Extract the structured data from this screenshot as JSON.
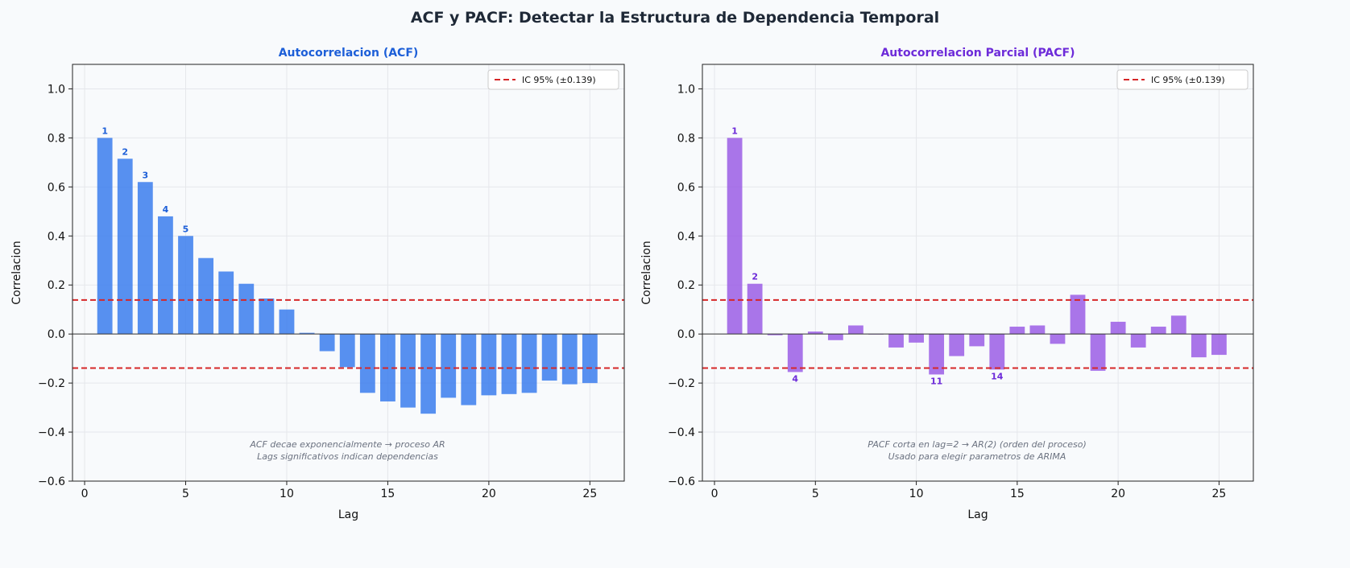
{
  "figure": {
    "title": "ACF y PACF: Detectar la Estructura de Dependencia Temporal"
  },
  "colors": {
    "acf": "#3b7ded",
    "acf_label": "#1d5fd8",
    "pacf": "#9b5de5",
    "pacf_label": "#6d2bd9",
    "ci": "#d62728",
    "axis": "#000000",
    "grid": "#e5e7eb",
    "note": "#6b7280"
  },
  "chart_data": [
    {
      "type": "bar",
      "title": "Autocorrelacion (ACF)",
      "xlabel": "Lag",
      "ylabel": "Correlacion",
      "xlim": [
        -0.6,
        26.7
      ],
      "ylim": [
        -0.6,
        1.1
      ],
      "xticks": [
        0,
        5,
        10,
        15,
        20,
        25
      ],
      "yticks": [
        -0.6,
        -0.4,
        -0.2,
        0.0,
        0.2,
        0.4,
        0.6,
        0.8,
        1.0
      ],
      "grid": true,
      "legend": {
        "position": "top-right",
        "entries": [
          "IC 95% (±0.139)"
        ]
      },
      "ci": 0.139,
      "x": [
        1,
        2,
        3,
        4,
        5,
        6,
        7,
        8,
        9,
        10,
        11,
        12,
        13,
        14,
        15,
        16,
        17,
        18,
        19,
        20,
        21,
        22,
        23,
        24,
        25
      ],
      "values": [
        0.8,
        0.715,
        0.62,
        0.48,
        0.4,
        0.31,
        0.255,
        0.205,
        0.145,
        0.1,
        0.005,
        -0.07,
        -0.135,
        -0.24,
        -0.275,
        -0.3,
        -0.325,
        -0.26,
        -0.29,
        -0.25,
        -0.245,
        -0.24,
        -0.19,
        -0.205,
        -0.2
      ],
      "labeled_lags": [
        1,
        2,
        3,
        4,
        5
      ],
      "annotation": [
        "ACF decae exponencialmente → proceso AR",
        "Lags significativos indican dependencias"
      ]
    },
    {
      "type": "bar",
      "title": "Autocorrelacion Parcial (PACF)",
      "xlabel": "Lag",
      "ylabel": "Correlacion",
      "xlim": [
        -0.6,
        26.7
      ],
      "ylim": [
        -0.6,
        1.1
      ],
      "xticks": [
        0,
        5,
        10,
        15,
        20,
        25
      ],
      "yticks": [
        -0.6,
        -0.4,
        -0.2,
        0.0,
        0.2,
        0.4,
        0.6,
        0.8,
        1.0
      ],
      "grid": true,
      "legend": {
        "position": "top-right",
        "entries": [
          "IC 95% (±0.139)"
        ]
      },
      "ci": 0.139,
      "x": [
        1,
        2,
        3,
        4,
        5,
        6,
        7,
        8,
        9,
        10,
        11,
        12,
        13,
        14,
        15,
        16,
        17,
        18,
        19,
        20,
        21,
        22,
        23,
        24,
        25
      ],
      "values": [
        0.8,
        0.205,
        -0.005,
        -0.155,
        0.01,
        -0.025,
        0.035,
        0.0,
        -0.055,
        -0.035,
        -0.165,
        -0.09,
        -0.05,
        -0.145,
        0.03,
        0.035,
        -0.04,
        0.16,
        -0.15,
        0.05,
        -0.055,
        0.03,
        0.075,
        -0.095,
        -0.085
      ],
      "labeled_lags": [
        1,
        2,
        4,
        11,
        14
      ],
      "annotation": [
        "PACF corta en lag=2 → AR(2) (orden del proceso)",
        "Usado para elegir parametros de ARIMA"
      ]
    }
  ]
}
